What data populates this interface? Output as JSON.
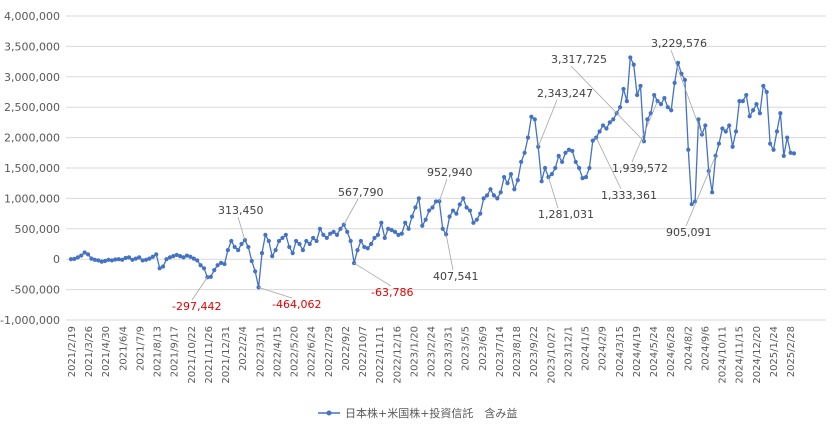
{
  "chart_data": {
    "type": "line",
    "series": [
      {
        "name": "日本株+米国株+投資信託　含み益",
        "color": "#4472C4",
        "values": [
          0,
          5000,
          30000,
          60000,
          110000,
          80000,
          10000,
          -10000,
          -20000,
          -40000,
          -30000,
          -10000,
          -20000,
          -5000,
          0,
          -10000,
          20000,
          30000,
          -10000,
          10000,
          30000,
          -20000,
          -10000,
          10000,
          40000,
          80000,
          -150000,
          -120000,
          0,
          30000,
          50000,
          70000,
          50000,
          30000,
          60000,
          40000,
          10000,
          -20000,
          -100000,
          -150000,
          -297442,
          -290000,
          -180000,
          -100000,
          -60000,
          -80000,
          150000,
          300000,
          200000,
          150000,
          250000,
          313450,
          200000,
          -30000,
          -200000,
          -464062,
          100000,
          400000,
          300000,
          50000,
          150000,
          300000,
          350000,
          400000,
          200000,
          100000,
          300000,
          250000,
          150000,
          300000,
          250000,
          350000,
          300000,
          500000,
          400000,
          350000,
          420000,
          450000,
          400000,
          500000,
          567790,
          450000,
          300000,
          -63786,
          150000,
          300000,
          200000,
          180000,
          250000,
          350000,
          400000,
          600000,
          350000,
          500000,
          480000,
          450000,
          400000,
          420000,
          600000,
          500000,
          700000,
          850000,
          1000000,
          550000,
          650000,
          800000,
          850000,
          950000,
          952940,
          500000,
          407541,
          700000,
          800000,
          750000,
          900000,
          1000000,
          850000,
          800000,
          600000,
          650000,
          750000,
          1000000,
          1050000,
          1150000,
          1050000,
          1000000,
          1100000,
          1350000,
          1250000,
          1400000,
          1150000,
          1300000,
          1600000,
          1750000,
          2000000,
          2343247,
          2300000,
          1850000,
          1281031,
          1500000,
          1350000,
          1400000,
          1500000,
          1700000,
          1600000,
          1750000,
          1800000,
          1780000,
          1600000,
          1500000,
          1333361,
          1350000,
          1500000,
          1950000,
          2000000,
          2100000,
          2200000,
          2150000,
          2250000,
          2300000,
          2400000,
          2500000,
          2800000,
          2600000,
          3317725,
          3200000,
          2700000,
          2850000,
          1939572,
          2300000,
          2400000,
          2700000,
          2600000,
          2550000,
          2650000,
          2500000,
          2450000,
          2900000,
          3229576,
          3050000,
          2950000,
          1800000,
          905091,
          950000,
          2300000,
          2050000,
          2200000,
          1450000,
          1100000,
          1700000,
          1900000,
          2150000,
          2100000,
          2200000,
          1850000,
          2100000,
          2600000,
          2600000,
          2700000,
          2350000,
          2450000,
          2550000,
          2400000,
          2850000,
          2750000,
          1900000,
          1800000,
          2100000,
          2400000,
          1700000,
          2000000,
          1750000,
          1740000
        ]
      }
    ],
    "x_tick_labels": [
      "2021/2/19",
      "2021/3/26",
      "2021/4/30",
      "2021/6/4",
      "2021/7/9",
      "2021/8/13",
      "2021/9/17",
      "2021/10/22",
      "2021/11/26",
      "2021/12/31",
      "2022/2/4",
      "2022/3/11",
      "2022/4/15",
      "2022/5/20",
      "2022/6/24",
      "2022/7/29",
      "2022/9/2",
      "2022/10/7",
      "2022/11/11",
      "2022/12/16",
      "2023/1/20",
      "2023/2/24",
      "2023/3/31",
      "2023/5/5",
      "2023/6/9",
      "2023/7/14",
      "2023/8/18",
      "2023/9/22",
      "2023/10/27",
      "2023/12/1",
      "2024/1/5",
      "2024/2/9",
      "2024/3/15",
      "2024/4/19",
      "2024/5/24",
      "2024/6/28",
      "2024/8/2",
      "2024/9/6",
      "2024/10/11",
      "2024/11/15",
      "2024/12/20",
      "2025/1/24",
      "2025/2/28"
    ],
    "y_tick_labels": [
      "4,000,000",
      "3,500,000",
      "3,000,000",
      "2,500,000",
      "2,000,000",
      "1,500,000",
      "1,000,000",
      "500,000",
      "0",
      "-500,000",
      "-1,000,000"
    ],
    "ylim": [
      -1000000,
      4000000
    ],
    "grid": "horizontal",
    "legend_position": "bottom",
    "annotations": [
      {
        "text": "313,450",
        "index": 51,
        "color": "#404040"
      },
      {
        "text": "567,790",
        "index": 80,
        "color": "#404040"
      },
      {
        "text": "952,940",
        "index": 108,
        "color": "#404040"
      },
      {
        "text": "2,343,247",
        "index": 137,
        "color": "#404040"
      },
      {
        "text": "3,317,725",
        "index": 168,
        "color": "#404040"
      },
      {
        "text": "3,229,576",
        "index": 185,
        "color": "#404040"
      },
      {
        "text": "-297,442",
        "index": 40,
        "color": "#E60000"
      },
      {
        "text": "-464,062",
        "index": 55,
        "color": "#E60000"
      },
      {
        "text": "-63,786",
        "index": 83,
        "color": "#E60000"
      },
      {
        "text": "407,541",
        "index": 110,
        "color": "#404040"
      },
      {
        "text": "1,281,031",
        "index": 140,
        "color": "#404040"
      },
      {
        "text": "1,333,361",
        "index": 154,
        "color": "#404040"
      },
      {
        "text": "1,939,572",
        "index": 172,
        "color": "#404040"
      },
      {
        "text": "905,091",
        "index": 189,
        "color": "#404040"
      }
    ]
  }
}
